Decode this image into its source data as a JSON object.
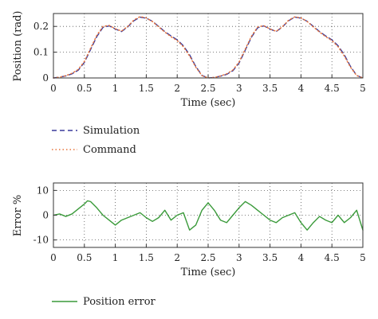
{
  "chart_data": [
    {
      "type": "line",
      "xlabel": "Time (sec)",
      "ylabel": "Position (rad)",
      "xlim": [
        0,
        5
      ],
      "ylim": [
        0,
        0.25
      ],
      "xticks": [
        "0",
        "0.5",
        "1",
        "1.5",
        "2",
        "2.5",
        "3",
        "3.5",
        "4",
        "4.5",
        "5"
      ],
      "yticks": [
        "0",
        "0.1",
        "0.2"
      ],
      "grid": true,
      "legend_position": "below",
      "x": [
        0,
        0.1,
        0.2,
        0.3,
        0.4,
        0.5,
        0.6,
        0.7,
        0.8,
        0.9,
        1.0,
        1.1,
        1.2,
        1.3,
        1.4,
        1.5,
        1.6,
        1.7,
        1.8,
        1.9,
        2.0,
        2.1,
        2.2,
        2.3,
        2.4,
        2.5,
        2.6,
        2.7,
        2.8,
        2.9,
        3.0,
        3.1,
        3.2,
        3.3,
        3.4,
        3.5,
        3.6,
        3.7,
        3.8,
        3.9,
        4.0,
        4.1,
        4.2,
        4.3,
        4.4,
        4.5,
        4.6,
        4.7,
        4.8,
        4.9,
        5.0
      ],
      "series": [
        {
          "name": "Simulation",
          "color": "#3a3a9a",
          "style": "dashed",
          "values": [
            0.0,
            0.003,
            0.008,
            0.016,
            0.03,
            0.06,
            0.11,
            0.16,
            0.196,
            0.202,
            0.19,
            0.18,
            0.198,
            0.222,
            0.236,
            0.232,
            0.22,
            0.2,
            0.18,
            0.163,
            0.148,
            0.125,
            0.09,
            0.045,
            0.01,
            0.0,
            0.002,
            0.007,
            0.014,
            0.028,
            0.058,
            0.108,
            0.158,
            0.195,
            0.202,
            0.19,
            0.18,
            0.198,
            0.222,
            0.236,
            0.232,
            0.22,
            0.2,
            0.18,
            0.163,
            0.148,
            0.125,
            0.09,
            0.045,
            0.01,
            0.0
          ]
        },
        {
          "name": "Command",
          "color": "#e8743b",
          "style": "dotted",
          "values": [
            0.0,
            0.003,
            0.009,
            0.018,
            0.033,
            0.064,
            0.115,
            0.165,
            0.2,
            0.204,
            0.191,
            0.182,
            0.2,
            0.225,
            0.238,
            0.233,
            0.219,
            0.198,
            0.178,
            0.16,
            0.145,
            0.121,
            0.085,
            0.042,
            0.009,
            0.0,
            0.002,
            0.008,
            0.016,
            0.031,
            0.062,
            0.112,
            0.162,
            0.198,
            0.203,
            0.19,
            0.181,
            0.199,
            0.224,
            0.237,
            0.233,
            0.219,
            0.198,
            0.178,
            0.16,
            0.145,
            0.121,
            0.085,
            0.042,
            0.009,
            0.0
          ]
        }
      ]
    },
    {
      "type": "line",
      "xlabel": "Time (sec)",
      "ylabel": "Error %",
      "xlim": [
        0,
        5
      ],
      "ylim": [
        -13,
        13
      ],
      "xticks": [
        "0",
        "0.5",
        "1",
        "1.5",
        "2",
        "2.5",
        "3",
        "3.5",
        "4",
        "4.5",
        "5"
      ],
      "yticks": [
        "10",
        "0",
        "-10"
      ],
      "grid": true,
      "legend_position": "below",
      "x": [
        0,
        0.1,
        0.2,
        0.3,
        0.4,
        0.5,
        0.55,
        0.6,
        0.7,
        0.8,
        0.9,
        1.0,
        1.1,
        1.2,
        1.3,
        1.4,
        1.5,
        1.6,
        1.7,
        1.8,
        1.9,
        2.0,
        2.1,
        2.2,
        2.3,
        2.4,
        2.5,
        2.6,
        2.7,
        2.8,
        2.9,
        3.0,
        3.1,
        3.2,
        3.3,
        3.4,
        3.5,
        3.6,
        3.7,
        3.8,
        3.9,
        4.0,
        4.1,
        4.2,
        4.3,
        4.4,
        4.5,
        4.6,
        4.7,
        4.8,
        4.9,
        5.0
      ],
      "series": [
        {
          "name": "Position error",
          "color": "#3a9a3a",
          "style": "solid",
          "values": [
            0,
            0.5,
            -0.5,
            0.5,
            2.5,
            4.5,
            5.8,
            5.5,
            3,
            0,
            -2,
            -4,
            -2,
            -1,
            0,
            1,
            -1,
            -2.5,
            -1,
            2,
            -2,
            0,
            1,
            -6,
            -4,
            2,
            5,
            2,
            -2,
            -3,
            0,
            3,
            5.5,
            4,
            2,
            0,
            -2,
            -3,
            -1,
            0,
            1,
            -3,
            -6,
            -3,
            -0.5,
            -2,
            -3,
            0,
            -3,
            -1,
            2,
            -6
          ]
        }
      ]
    }
  ]
}
